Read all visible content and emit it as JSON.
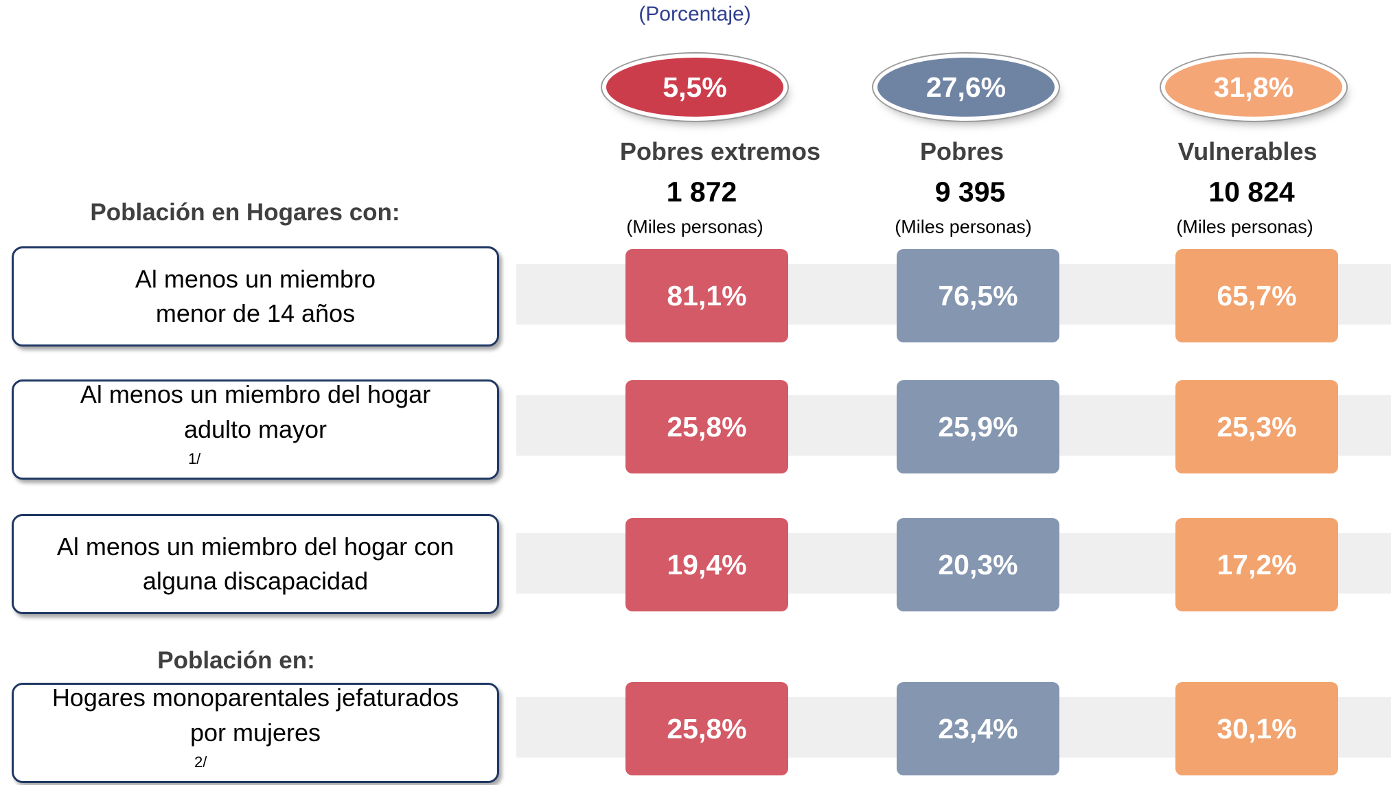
{
  "subtitle": "(Porcentaje)",
  "columns": [
    {
      "share": "5,5%",
      "name": "Pobres extremos",
      "population": "1 872",
      "unit": "(Miles personas)"
    },
    {
      "share": "27,6%",
      "name": "Pobres",
      "population": "9 395",
      "unit": "(Miles personas)"
    },
    {
      "share": "31,8%",
      "name": "Vulnerables",
      "population": "10 824",
      "unit": "(Miles personas)"
    }
  ],
  "sections": [
    {
      "heading": "Población en Hogares con:",
      "rows": [
        {
          "lines": [
            "Al menos un miembro",
            "menor de 14 años"
          ],
          "values": [
            "81,1%",
            "76,5%",
            "65,7%"
          ]
        },
        {
          "lines": [
            "Al menos un miembro del hogar",
            "adulto mayor"
          ],
          "note": "1/",
          "values": [
            "25,8%",
            "25,9%",
            "25,3%"
          ]
        },
        {
          "lines": [
            "Al menos un miembro  del hogar con",
            "alguna discapacidad"
          ],
          "values": [
            "19,4%",
            "20,3%",
            "17,2%"
          ]
        }
      ]
    },
    {
      "heading": "Población en:",
      "rows": [
        {
          "lines": [
            "Hogares monoparentales jefaturados",
            "por mujeres"
          ],
          "note": "2/",
          "values": [
            "25,8%",
            "23,4%",
            "30,1%"
          ]
        }
      ]
    }
  ]
}
